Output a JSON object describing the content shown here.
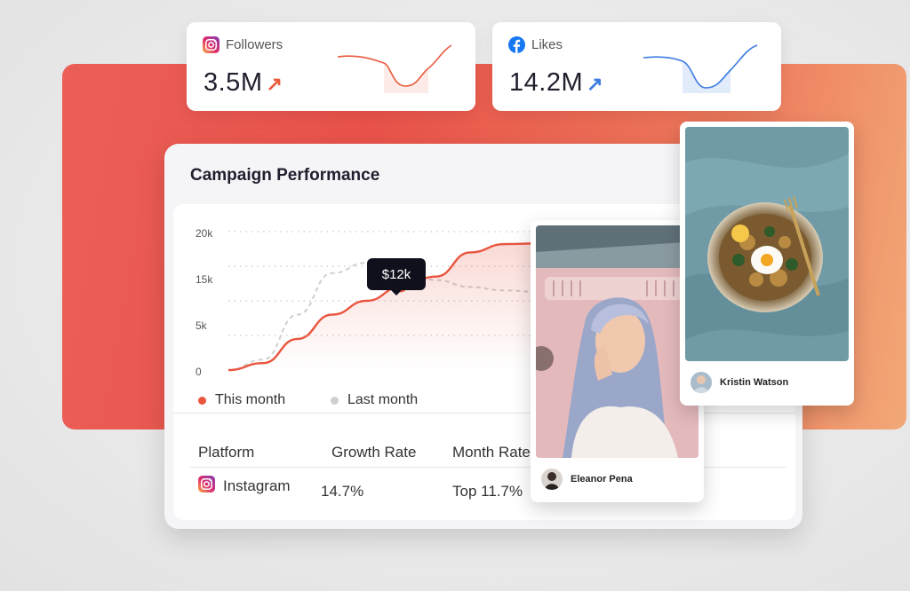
{
  "stats": [
    {
      "platform": "Followers",
      "value": "3.5M",
      "icon": "instagram-icon",
      "accent": "#ea5a3d",
      "trend_icon": "arrow-up-right-icon"
    },
    {
      "platform": "Likes",
      "value": "14.2M",
      "icon": "facebook-icon",
      "accent": "#3b7be0",
      "trend_icon": "arrow-up-right-icon"
    }
  ],
  "campaign": {
    "title": "Campaign Performance",
    "tooltip": "$12k",
    "legend": [
      {
        "label": "This month",
        "color": "#e9553f"
      },
      {
        "label": "Last month",
        "color": "#cfcfcf"
      }
    ]
  },
  "chart_data": {
    "type": "line",
    "yticks": [
      "0",
      "5k",
      "15k",
      "20k"
    ],
    "ylim": [
      0,
      20000
    ],
    "series": [
      {
        "name": "This month",
        "color": "#e9553f",
        "values": [
          0,
          1000,
          4500,
          8000,
          10000,
          12000,
          13500,
          17000,
          18200,
          18300
        ]
      },
      {
        "name": "Last month",
        "color": "#cfcfcf",
        "values": [
          0,
          1500,
          8000,
          14000,
          15500,
          14500,
          13000,
          12000,
          11500,
          11300
        ]
      }
    ]
  },
  "table": {
    "headers": [
      "Platform",
      "Growth Rate",
      "Month Rate"
    ],
    "rows": [
      {
        "platform": "Instagram",
        "growth": "14.7%",
        "month": "Top 11.7%"
      }
    ]
  },
  "photos": [
    {
      "name": "Eleanor Pena"
    },
    {
      "name": "Kristin Watson"
    }
  ]
}
